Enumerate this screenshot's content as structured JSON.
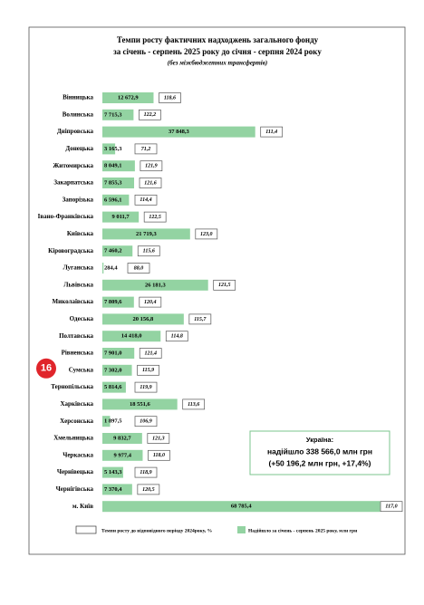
{
  "chart_data": {
    "type": "bar",
    "orientation": "horizontal",
    "title": "Темпи росту фактичних надходжень загального фонду",
    "subtitle": "за січень - серпень 2025 року до січня - серпня 2024 року",
    "note": "(без міжбюджетних трансфертів)",
    "categories": [
      "Вінницька",
      "Волинська",
      "Дніпровська",
      "Донецька",
      "Житомирська",
      "Закарпатська",
      "Запорізька",
      "Івано-Франківська",
      "Київська",
      "Кіровоградська",
      "Луганська",
      "Львівська",
      "Миколаївська",
      "Одеська",
      "Полтавська",
      "Рівненська",
      "Сумська",
      "Тернопільська",
      "Харківська",
      "Херсонська",
      "Хмельницька",
      "Черкаська",
      "Чернівецька",
      "Чернігівська",
      "м. Київ"
    ],
    "series": [
      {
        "name": "Темпи росту до відповідного періоду 2024року, %",
        "color": "#ffffff",
        "values": [
          118.6,
          122.2,
          111.4,
          71.2,
          121.9,
          121.6,
          114.4,
          122.5,
          123.0,
          115.6,
          88.0,
          121.5,
          120.4,
          115.7,
          114.8,
          121.4,
          115.9,
          119.9,
          113.6,
          106.9,
          121.3,
          118.0,
          118.9,
          120.5,
          117.0
        ],
        "value_labels": [
          "118,6",
          "122,2",
          "111,4",
          "71,2",
          "121,9",
          "121,6",
          "114,4",
          "122,5",
          "123,0",
          "115,6",
          "88,0",
          "121,5",
          "120,4",
          "115,7",
          "114,8",
          "121,4",
          "115,9",
          "119,9",
          "113,6",
          "106,9",
          "121,3",
          "118,0",
          "118,9",
          "120,5",
          "117,0"
        ]
      },
      {
        "name": "Надійшло за січень - серпень 2025 року, млн грн",
        "color": "#93d3a2",
        "values": [
          12672.9,
          7715.3,
          37848.3,
          3165.3,
          8049.1,
          7855.3,
          6596.1,
          9011.7,
          21719.3,
          7460.2,
          284.4,
          26181.3,
          7809.6,
          20156.8,
          14418.0,
          7901.0,
          7302.0,
          5814.6,
          18551.6,
          1897.5,
          9832.7,
          9977.4,
          5143.3,
          7370.4,
          68785.4
        ],
        "value_labels": [
          "12 672,9",
          "7 715,3",
          "37 848,3",
          "3 165,3",
          "8 049,1",
          "7 855,3",
          "6 596,1",
          "9 011,7",
          "21 719,3",
          "7 460,2",
          "284,4",
          "26 181,3",
          "7 809,6",
          "20 156,8",
          "14 418,0",
          "7 901,0",
          "7 302,0",
          "5 814,6",
          "18 551,6",
          "1 897,5",
          "9 832,7",
          "9 977,4",
          "5 143,3",
          "7 370,4",
          "68 785,4"
        ]
      }
    ],
    "xlim": [
      0,
      70000
    ],
    "annotation": [
      "Україна:",
      "надійшло 338 566,0 млн грн",
      "(+50 196,2 млн грн, +17,4%)"
    ],
    "badge": {
      "text": "16",
      "category_index": 16
    }
  }
}
